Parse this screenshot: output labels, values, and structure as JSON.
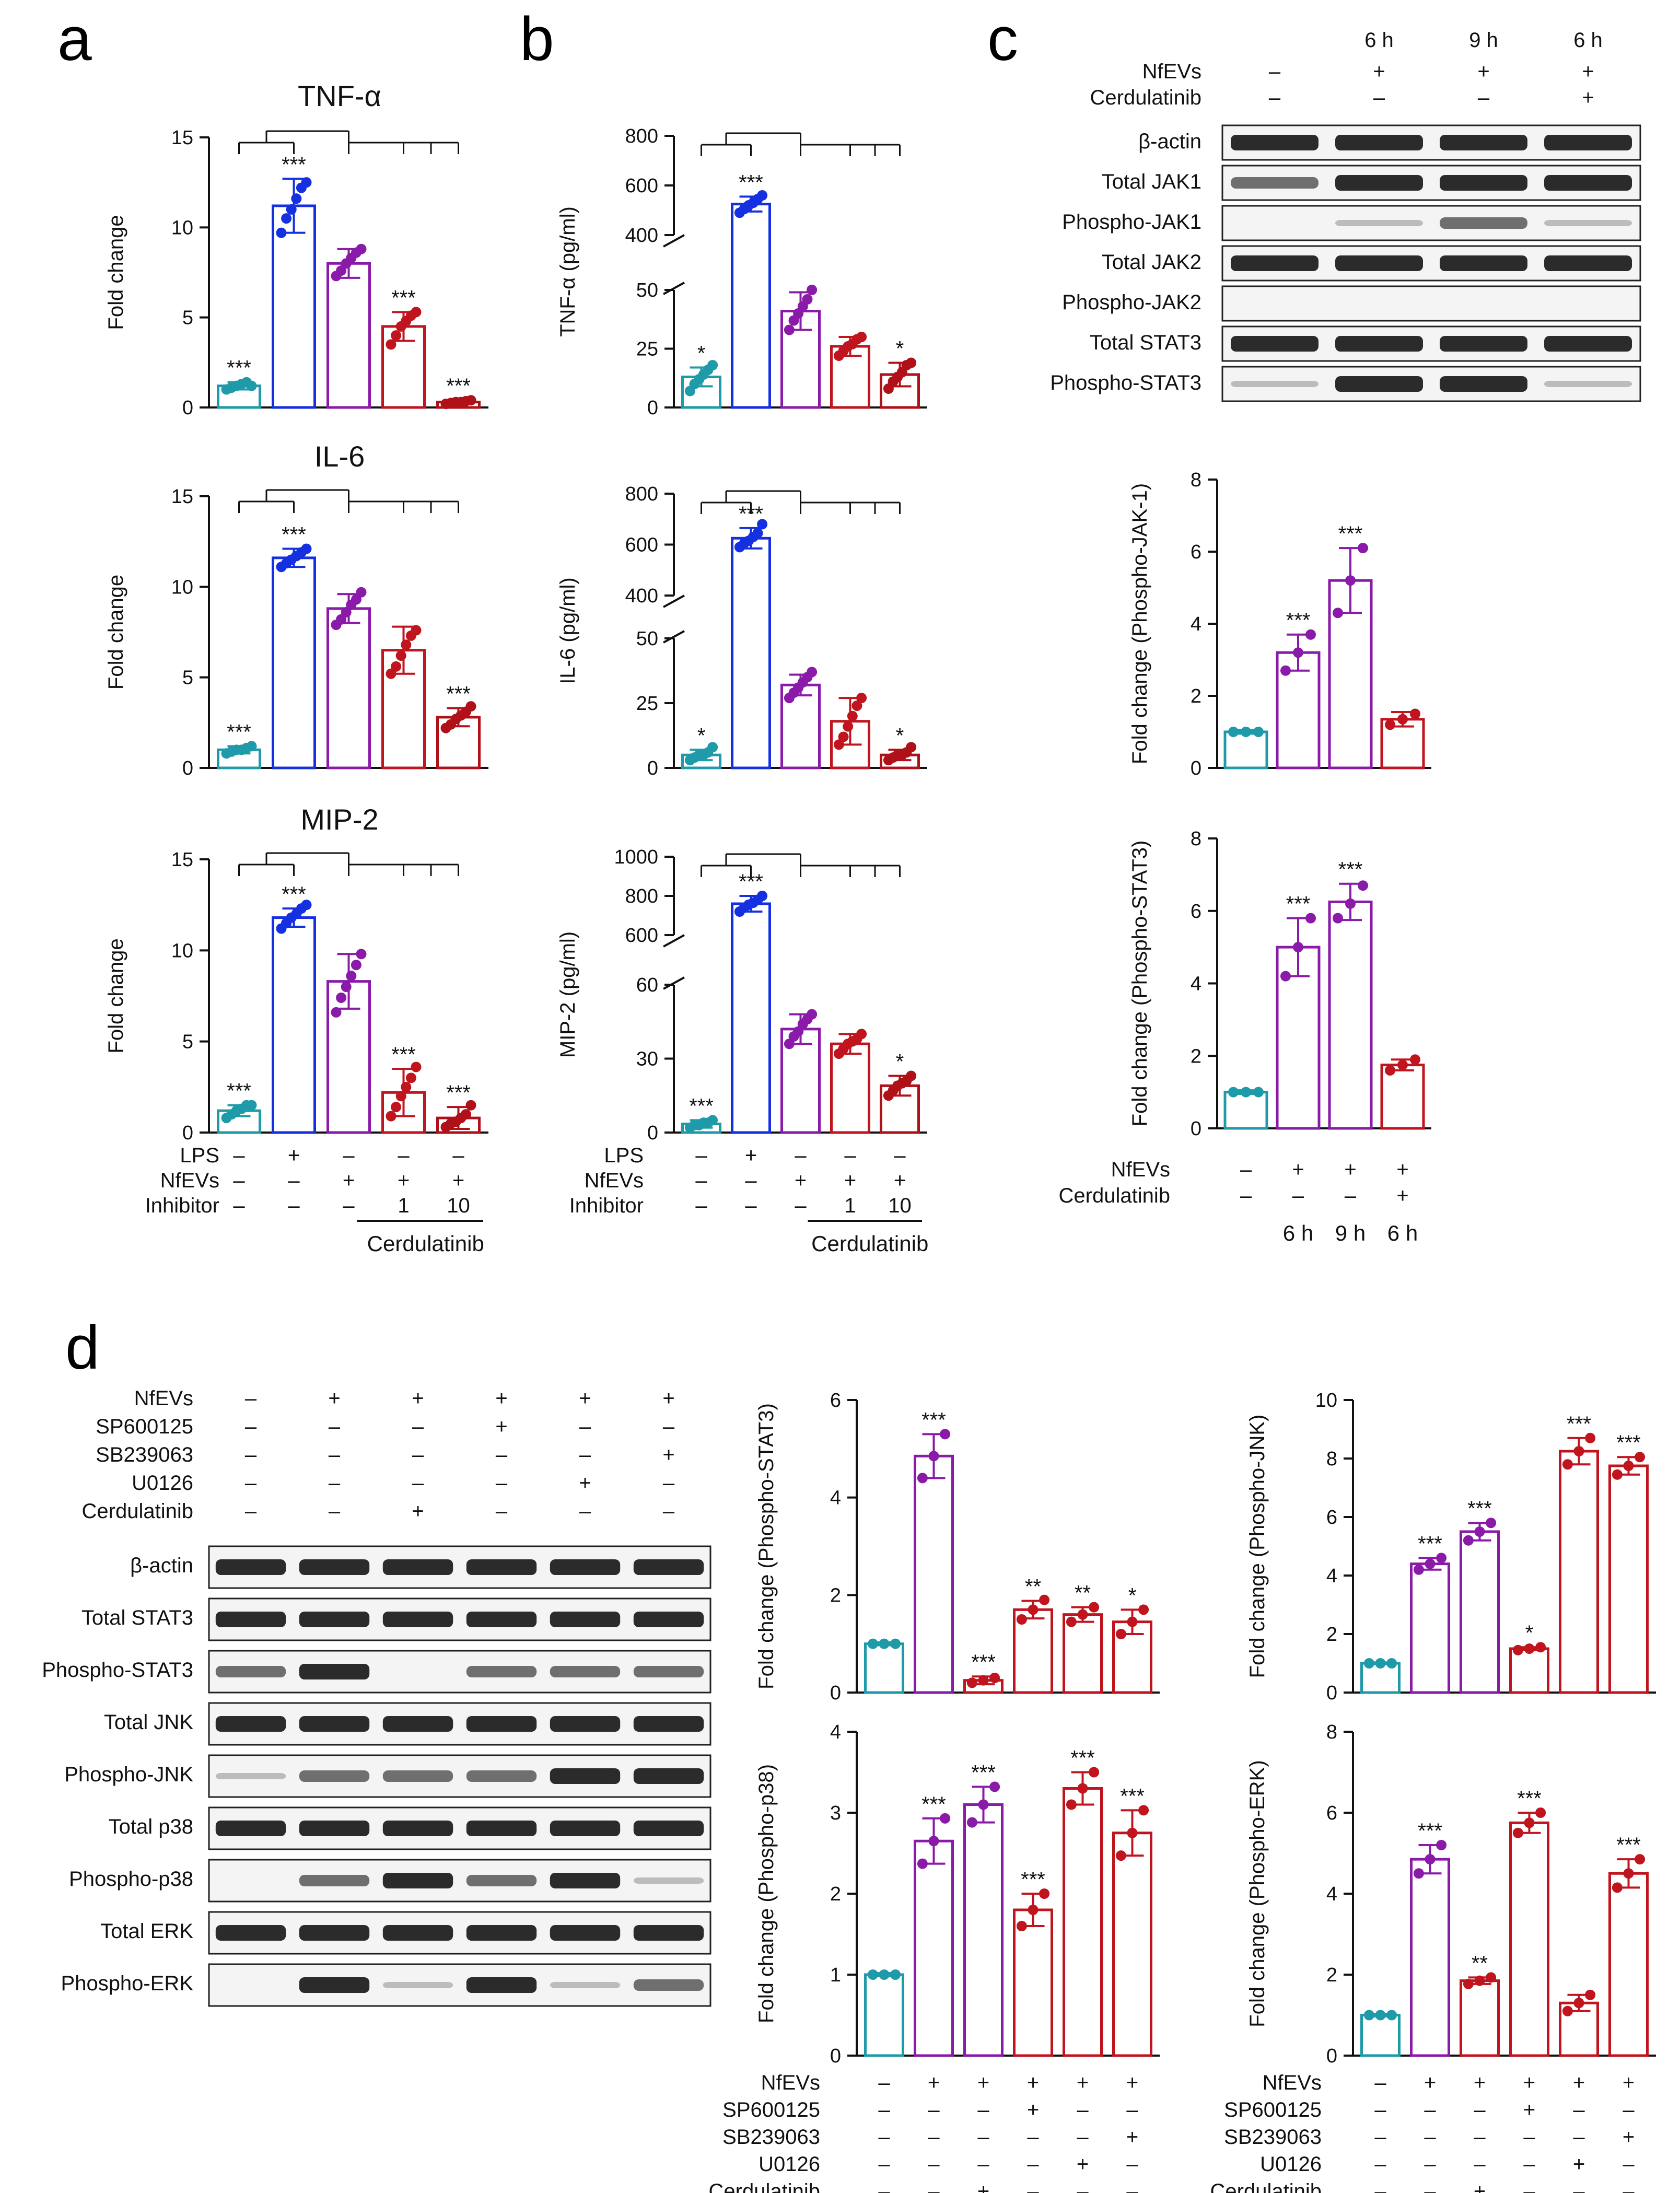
{
  "panel_labels": {
    "a": "a",
    "b": "b",
    "c": "c",
    "d": "d"
  },
  "conditions": {
    "lps_label": "LPS",
    "nfevs_label": "NfEVs",
    "inhibitor_label": "Inhibitor",
    "lps": [
      "–",
      "+",
      "–",
      "–",
      "–"
    ],
    "nfevs": [
      "–",
      "–",
      "+",
      "+",
      "+"
    ],
    "inhibitor": [
      "–",
      "–",
      "–",
      "1",
      "10"
    ],
    "drug": "Cerdulatinib"
  },
  "panel_c_blot": {
    "time_labels": [
      "6 h",
      "9 h",
      "6 h"
    ],
    "rows": [
      {
        "label": "NfEVs",
        "signs": [
          "–",
          "+",
          "+",
          "+"
        ]
      },
      {
        "label": "Cerdulatinib",
        "signs": [
          "–",
          "–",
          "–",
          "+"
        ]
      }
    ],
    "bands": [
      "β-actin",
      "Total JAK1",
      "Phospho-JAK1",
      "Total JAK2",
      "Phospho-JAK2",
      "Total STAT3",
      "Phospho-STAT3"
    ]
  },
  "panel_c_conditions": {
    "rows": [
      {
        "label": "NfEVs",
        "signs": [
          "–",
          "+",
          "+",
          "+"
        ]
      },
      {
        "label": "Cerdulatinib",
        "signs": [
          "–",
          "–",
          "–",
          "+"
        ]
      }
    ],
    "time_labels": [
      "6 h",
      "9 h",
      "6 h"
    ]
  },
  "panel_d_blot": {
    "rows": [
      {
        "label": "NfEVs",
        "signs": [
          "–",
          "+",
          "+",
          "+",
          "+",
          "+"
        ]
      },
      {
        "label": "SP600125",
        "signs": [
          "–",
          "–",
          "–",
          "+",
          "–",
          "–"
        ]
      },
      {
        "label": "SB239063",
        "signs": [
          "–",
          "–",
          "–",
          "–",
          "–",
          "+"
        ]
      },
      {
        "label": "U0126",
        "signs": [
          "–",
          "–",
          "–",
          "–",
          "+",
          "–"
        ]
      },
      {
        "label": "Cerdulatinib",
        "signs": [
          "–",
          "–",
          "+",
          "–",
          "–",
          "–"
        ]
      }
    ],
    "bands": [
      "β-actin",
      "Total STAT3",
      "Phospho-STAT3",
      "Total JNK",
      "Phospho-JNK",
      "Total p38",
      "Phospho-p38",
      "Total ERK",
      "Phospho-ERK"
    ]
  },
  "colors": {
    "teal": "#1f9aa8",
    "blue": "#1530e0",
    "purple": "#8a1aa8",
    "red": "#c0141e",
    "darkred": "#b01018",
    "black": "#111111"
  },
  "chart_data": [
    {
      "id": "a1",
      "type": "bar",
      "title": "TNF-α",
      "ylabel": "Fold change",
      "ylim": [
        0,
        15
      ],
      "ticks": [
        0,
        5,
        10,
        15
      ],
      "values": [
        1.2,
        11.2,
        8.0,
        4.5,
        0.3
      ],
      "errors": [
        0.2,
        1.5,
        0.8,
        0.8,
        0.1
      ],
      "stars": [
        "***",
        "***",
        "",
        "***",
        "***"
      ],
      "points": [
        [
          1.0,
          1.1,
          1.2,
          1.3,
          1.4,
          1.2
        ],
        [
          9.7,
          10.5,
          11.0,
          11.6,
          12.2,
          12.5
        ],
        [
          7.3,
          7.6,
          8.0,
          8.3,
          8.6,
          8.8
        ],
        [
          3.5,
          4.0,
          4.5,
          4.8,
          5.1,
          5.3
        ],
        [
          0.2,
          0.25,
          0.3,
          0.3,
          0.35,
          0.4
        ]
      ],
      "colors": [
        "teal",
        "blue",
        "purple",
        "red",
        "darkred"
      ]
    },
    {
      "id": "a2",
      "type": "bar",
      "title": "IL-6",
      "ylabel": "Fold change",
      "ylim": [
        0,
        15
      ],
      "ticks": [
        0,
        5,
        10,
        15
      ],
      "values": [
        1.0,
        11.6,
        8.8,
        6.5,
        2.8
      ],
      "errors": [
        0.2,
        0.5,
        0.8,
        1.3,
        0.5
      ],
      "stars": [
        "***",
        "***",
        "",
        "",
        "***"
      ],
      "points": [
        [
          0.8,
          0.9,
          1.0,
          1.0,
          1.1,
          1.2
        ],
        [
          11.1,
          11.3,
          11.5,
          11.7,
          11.9,
          12.1
        ],
        [
          7.9,
          8.2,
          8.6,
          9.0,
          9.3,
          9.7
        ],
        [
          5.2,
          5.6,
          6.2,
          6.8,
          7.3,
          7.6
        ],
        [
          2.2,
          2.4,
          2.7,
          2.9,
          3.1,
          3.4
        ]
      ],
      "colors": [
        "teal",
        "blue",
        "purple",
        "red",
        "darkred"
      ]
    },
    {
      "id": "a3",
      "type": "bar",
      "title": "MIP-2",
      "ylabel": "Fold change",
      "ylim": [
        0,
        15
      ],
      "ticks": [
        0,
        5,
        10,
        15
      ],
      "values": [
        1.2,
        11.8,
        8.3,
        2.2,
        0.8
      ],
      "errors": [
        0.3,
        0.5,
        1.5,
        1.3,
        0.6
      ],
      "stars": [
        "***",
        "***",
        "",
        "***",
        "***"
      ],
      "points": [
        [
          0.8,
          1.0,
          1.2,
          1.3,
          1.5,
          1.5
        ],
        [
          11.2,
          11.5,
          11.8,
          12.0,
          12.3,
          12.5
        ],
        [
          6.6,
          7.4,
          8.0,
          8.6,
          9.2,
          9.8
        ],
        [
          0.9,
          1.4,
          2.0,
          2.5,
          3.0,
          3.6
        ],
        [
          0.3,
          0.5,
          0.6,
          0.8,
          1.0,
          1.5
        ]
      ],
      "colors": [
        "teal",
        "blue",
        "purple",
        "red",
        "darkred"
      ]
    },
    {
      "id": "b1",
      "type": "bar",
      "title": "",
      "ylabel": "TNF-α (pg/ml)",
      "broken_axis": true,
      "lower_ylim": [
        0,
        50
      ],
      "lower_ticks": [
        0,
        25,
        50
      ],
      "upper_ylim": [
        400,
        800
      ],
      "upper_ticks": [
        400,
        600,
        800
      ],
      "values": [
        13,
        525,
        41,
        26,
        14
      ],
      "errors": [
        4,
        30,
        8,
        4,
        5
      ],
      "stars": [
        "*",
        "***",
        "",
        "",
        "*"
      ],
      "points": [
        [
          7,
          10,
          12,
          14,
          16,
          18
        ],
        [
          490,
          505,
          520,
          530,
          545,
          560
        ],
        [
          33,
          37,
          40,
          43,
          46,
          50
        ],
        [
          22,
          24,
          26,
          27,
          29,
          30
        ],
        [
          8,
          11,
          13,
          15,
          18,
          19
        ]
      ],
      "colors": [
        "teal",
        "blue",
        "purple",
        "red",
        "darkred"
      ]
    },
    {
      "id": "b2",
      "type": "bar",
      "title": "",
      "ylabel": "IL-6 (pg/ml)",
      "broken_axis": true,
      "lower_ylim": [
        0,
        50
      ],
      "lower_ticks": [
        0,
        25,
        50
      ],
      "upper_ylim": [
        400,
        800
      ],
      "upper_ticks": [
        400,
        600,
        800
      ],
      "values": [
        5,
        625,
        32,
        18,
        5
      ],
      "errors": [
        2,
        40,
        4,
        9,
        2
      ],
      "stars": [
        "*",
        "***",
        "",
        "",
        "*"
      ],
      "points": [
        [
          3,
          4,
          5,
          5,
          6,
          8
        ],
        [
          590,
          605,
          615,
          630,
          645,
          680
        ],
        [
          27,
          29,
          31,
          33,
          35,
          37
        ],
        [
          9,
          12,
          16,
          20,
          24,
          27
        ],
        [
          3,
          4,
          5,
          5,
          6,
          8
        ]
      ],
      "colors": [
        "teal",
        "blue",
        "purple",
        "red",
        "darkred"
      ]
    },
    {
      "id": "b3",
      "type": "bar",
      "title": "",
      "ylabel": "MIP-2 (pg/ml)",
      "broken_axis": true,
      "lower_ylim": [
        0,
        60
      ],
      "lower_ticks": [
        0,
        30,
        60
      ],
      "upper_ylim": [
        600,
        1000
      ],
      "upper_ticks": [
        600,
        800,
        1000
      ],
      "values": [
        3.5,
        760,
        42,
        36,
        19
      ],
      "errors": [
        1.5,
        40,
        6,
        4,
        4
      ],
      "stars": [
        "***",
        "***",
        "",
        "",
        "*"
      ],
      "points": [
        [
          2,
          3,
          3,
          4,
          4,
          5
        ],
        [
          720,
          740,
          755,
          765,
          780,
          800
        ],
        [
          36,
          39,
          41,
          44,
          46,
          48
        ],
        [
          32,
          34,
          36,
          37,
          38,
          40
        ],
        [
          15,
          17,
          19,
          20,
          21,
          23
        ]
      ],
      "colors": [
        "teal",
        "blue",
        "purple",
        "red",
        "darkred"
      ]
    },
    {
      "id": "c1",
      "type": "bar",
      "title": "",
      "ylabel": "Fold change (Phospho-JAK-1)",
      "ylim": [
        0,
        8
      ],
      "ticks": [
        0,
        2,
        4,
        6,
        8
      ],
      "values": [
        1.0,
        3.2,
        5.2,
        1.35
      ],
      "errors": [
        0.05,
        0.5,
        0.9,
        0.2
      ],
      "stars": [
        "",
        "***",
        "***",
        ""
      ],
      "points": [
        [
          1.0,
          1.0,
          1.0
        ],
        [
          2.7,
          3.2,
          3.7
        ],
        [
          4.3,
          5.2,
          6.1
        ],
        [
          1.2,
          1.35,
          1.5
        ]
      ],
      "colors": [
        "teal",
        "purple",
        "purple",
        "red"
      ]
    },
    {
      "id": "c2",
      "type": "bar",
      "title": "",
      "ylabel": "Fold change (Phospho-STAT3)",
      "ylim": [
        0,
        8
      ],
      "ticks": [
        0,
        2,
        4,
        6,
        8
      ],
      "values": [
        1.0,
        5.0,
        6.25,
        1.75
      ],
      "errors": [
        0.05,
        0.8,
        0.5,
        0.15
      ],
      "stars": [
        "",
        "***",
        "***",
        ""
      ],
      "points": [
        [
          1.0,
          1.0,
          1.0
        ],
        [
          4.2,
          5.0,
          5.8
        ],
        [
          5.8,
          6.2,
          6.7
        ],
        [
          1.6,
          1.75,
          1.9
        ]
      ],
      "colors": [
        "teal",
        "purple",
        "purple",
        "red"
      ]
    },
    {
      "id": "d1",
      "type": "bar",
      "title": "",
      "ylabel": "Fold change (Phospho-STAT3)",
      "ylim": [
        0,
        6
      ],
      "ticks": [
        0,
        2,
        4,
        6
      ],
      "values": [
        1.0,
        4.85,
        0.25,
        1.7,
        1.6,
        1.45
      ],
      "errors": [
        0.03,
        0.45,
        0.08,
        0.18,
        0.15,
        0.25
      ],
      "stars": [
        "",
        "***",
        "***",
        "**",
        "**",
        "*"
      ],
      "points": [
        [
          1.0,
          1.0,
          1.0
        ],
        [
          4.4,
          4.85,
          5.3
        ],
        [
          0.2,
          0.25,
          0.3
        ],
        [
          1.5,
          1.7,
          1.9
        ],
        [
          1.45,
          1.6,
          1.75
        ],
        [
          1.2,
          1.45,
          1.7
        ]
      ],
      "colors": [
        "teal",
        "purple",
        "red",
        "red",
        "red",
        "red"
      ]
    },
    {
      "id": "d2",
      "type": "bar",
      "title": "",
      "ylabel": "Fold change (Phospho-JNK)",
      "ylim": [
        0,
        10
      ],
      "ticks": [
        0,
        2,
        4,
        6,
        8,
        10
      ],
      "values": [
        1.0,
        4.4,
        5.5,
        1.5,
        8.25,
        7.75
      ],
      "errors": [
        0.03,
        0.2,
        0.3,
        0.05,
        0.45,
        0.3
      ],
      "stars": [
        "",
        "***",
        "***",
        "*",
        "***",
        "***"
      ],
      "points": [
        [
          1.0,
          1.0,
          1.0
        ],
        [
          4.2,
          4.4,
          4.6
        ],
        [
          5.2,
          5.5,
          5.8
        ],
        [
          1.45,
          1.5,
          1.55
        ],
        [
          7.8,
          8.25,
          8.7
        ],
        [
          7.45,
          7.75,
          8.05
        ]
      ],
      "colors": [
        "teal",
        "purple",
        "purple",
        "red",
        "red",
        "red"
      ]
    },
    {
      "id": "d3",
      "type": "bar",
      "title": "",
      "ylabel": "Fold change (Phospho-p38)",
      "ylim": [
        0,
        4
      ],
      "ticks": [
        0,
        1,
        2,
        3,
        4
      ],
      "values": [
        1.0,
        2.65,
        3.1,
        1.8,
        3.3,
        2.75
      ],
      "errors": [
        0.02,
        0.28,
        0.22,
        0.2,
        0.2,
        0.28
      ],
      "stars": [
        "",
        "***",
        "***",
        "***",
        "***",
        "***"
      ],
      "points": [
        [
          1.0,
          1.0,
          1.0
        ],
        [
          2.37,
          2.65,
          2.93
        ],
        [
          2.88,
          3.1,
          3.32
        ],
        [
          1.6,
          1.8,
          2.0
        ],
        [
          3.1,
          3.3,
          3.5
        ],
        [
          2.47,
          2.75,
          3.03
        ]
      ],
      "colors": [
        "teal",
        "purple",
        "purple",
        "red",
        "red",
        "red"
      ]
    },
    {
      "id": "d4",
      "type": "bar",
      "title": "",
      "ylabel": "Fold change (Phospho-ERK)",
      "ylim": [
        0,
        8
      ],
      "ticks": [
        0,
        2,
        4,
        6,
        8
      ],
      "values": [
        1.0,
        4.85,
        1.85,
        5.75,
        1.3,
        4.5
      ],
      "errors": [
        0.03,
        0.35,
        0.08,
        0.25,
        0.2,
        0.35
      ],
      "stars": [
        "",
        "***",
        "**",
        "***",
        "",
        "***"
      ],
      "points": [
        [
          1.0,
          1.0,
          1.0
        ],
        [
          4.5,
          4.85,
          5.2
        ],
        [
          1.77,
          1.85,
          1.93
        ],
        [
          5.5,
          5.75,
          6.0
        ],
        [
          1.1,
          1.3,
          1.5
        ],
        [
          4.15,
          4.5,
          4.85
        ]
      ],
      "colors": [
        "teal",
        "purple",
        "red",
        "red",
        "red",
        "red"
      ]
    }
  ]
}
